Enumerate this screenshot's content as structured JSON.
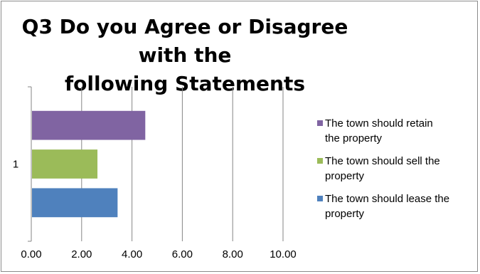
{
  "chart_data": {
    "type": "bar",
    "orientation": "horizontal",
    "title_lines": [
      "Q3 Do you Agree or Disagree with the",
      "following Statements"
    ],
    "categories": [
      "1"
    ],
    "series": [
      {
        "name": "The town should lease the property",
        "values": [
          3.4
        ],
        "color": "#4f81bd"
      },
      {
        "name": "The town should sell the property",
        "values": [
          2.6
        ],
        "color": "#9bbb59"
      },
      {
        "name": "The town should retain the property",
        "values": [
          4.5
        ],
        "color": "#8064a2"
      }
    ],
    "xlim": [
      0,
      10
    ],
    "x_ticks": [
      "0.00",
      "2.00",
      "4.00",
      "6.00",
      "8.00",
      "10.00"
    ],
    "grid": "vertical",
    "legend": {
      "position": "right",
      "items": [
        {
          "lines": [
            "The town should retain",
            "the property"
          ],
          "color": "#8064a2"
        },
        {
          "lines": [
            "The town should sell the",
            "property"
          ],
          "color": "#9bbb59"
        },
        {
          "lines": [
            "The town should lease the",
            "property"
          ],
          "color": "#4f81bd"
        }
      ]
    }
  }
}
